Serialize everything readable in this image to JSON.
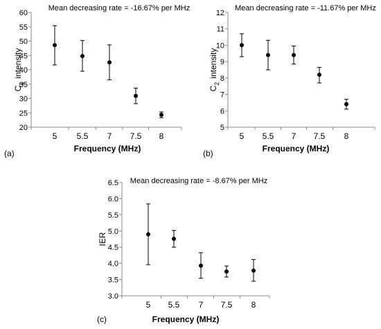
{
  "chart_data": [
    {
      "type": "scatter",
      "panel_label": "(a)",
      "annotation": "Mean decreasing rate = -16.67% per MHz",
      "xlabel": "Frequency (MHz)",
      "ylabel_main": "C",
      "ylabel_sub": "1",
      "ylabel_rest": "intensity",
      "categories": [
        "5",
        "5.5",
        "7",
        "7.5",
        "8"
      ],
      "y_ticks": [
        "20",
        "25",
        "30",
        "35",
        "40",
        "45",
        "50",
        "55",
        "60"
      ],
      "ylim": [
        20,
        60
      ],
      "values": [
        48.6,
        44.8,
        42.6,
        30.9,
        24.3
      ],
      "error_low": [
        41.7,
        39.5,
        36.5,
        28.2,
        23.3
      ],
      "error_high": [
        55.4,
        50.2,
        48.7,
        33.6,
        25.3
      ]
    },
    {
      "type": "scatter",
      "panel_label": "(b)",
      "annotation": "Mean decreasing rate = -11.67% per MHz",
      "xlabel": "Frequency (MHz)",
      "ylabel_main": "C",
      "ylabel_sub": "2",
      "ylabel_rest": "intensity",
      "categories": [
        "5",
        "5.5",
        "7",
        "7.5",
        "8"
      ],
      "y_ticks": [
        "5",
        "6",
        "7",
        "8",
        "9",
        "10",
        "11",
        "12"
      ],
      "ylim": [
        5,
        12
      ],
      "values": [
        10.0,
        9.4,
        9.4,
        8.2,
        6.4
      ],
      "error_low": [
        9.3,
        8.5,
        8.85,
        7.7,
        6.1
      ],
      "error_high": [
        10.7,
        10.3,
        9.95,
        8.65,
        6.7
      ]
    },
    {
      "type": "scatter",
      "panel_label": "(c)",
      "annotation": "Mean decreasing rate = -8.67% per MHz",
      "xlabel": "Frequency (MHz)",
      "ylabel_main": "IER",
      "ylabel_sub": "",
      "ylabel_rest": "",
      "categories": [
        "5",
        "5.5",
        "7",
        "7.5",
        "8"
      ],
      "y_ticks": [
        "3.0",
        "3.5",
        "4.0",
        "4.5",
        "5.0",
        "5.5",
        "6.0",
        "6.5"
      ],
      "ylim": [
        3.0,
        6.5
      ],
      "values": [
        4.9,
        4.76,
        3.93,
        3.75,
        3.78
      ],
      "error_low": [
        3.96,
        4.5,
        3.54,
        3.58,
        3.45
      ],
      "error_high": [
        5.84,
        5.02,
        4.33,
        3.92,
        4.12
      ]
    }
  ]
}
